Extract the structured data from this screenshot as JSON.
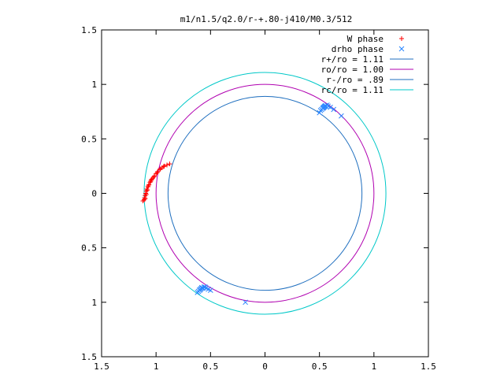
{
  "chart_data": {
    "type": "scatter",
    "title": "m1/n1.5/q2.0/r-+.80-j410/M0.3/512",
    "xlabel": "",
    "ylabel": "",
    "xlim": [
      -1.5,
      1.5
    ],
    "ylim": [
      -1.5,
      1.5
    ],
    "x_ticks": [
      -1.5,
      -1,
      -0.5,
      0,
      0.5,
      1,
      1.5
    ],
    "y_ticks": [
      -1.5,
      -1,
      -0.5,
      0,
      0.5,
      1,
      1.5
    ],
    "x_tick_labels": [
      "1.5",
      "1",
      "0.5",
      "0",
      "0.5",
      "1",
      "1.5"
    ],
    "y_tick_labels": [
      "1.5",
      "1",
      "0.5",
      "0",
      "0.5",
      "1",
      "1.5"
    ],
    "grid": false,
    "legend_position": "top-right",
    "series": [
      {
        "name": "W phase",
        "kind": "points",
        "marker": "plus",
        "color": "#ff0000",
        "points": [
          [
            -1.12,
            -0.07
          ],
          [
            -1.11,
            -0.06
          ],
          [
            -1.105,
            -0.04
          ],
          [
            -1.1,
            -0.02
          ],
          [
            -1.095,
            0.0
          ],
          [
            -1.09,
            0.02
          ],
          [
            -1.085,
            0.04
          ],
          [
            -1.075,
            0.06
          ],
          [
            -1.065,
            0.08
          ],
          [
            -1.055,
            0.1
          ],
          [
            -1.045,
            0.12
          ],
          [
            -1.03,
            0.14
          ],
          [
            -1.015,
            0.16
          ],
          [
            -1.0,
            0.18
          ],
          [
            -0.985,
            0.2
          ],
          [
            -0.965,
            0.22
          ],
          [
            -0.945,
            0.235
          ],
          [
            -0.925,
            0.25
          ],
          [
            -0.9,
            0.26
          ],
          [
            -0.875,
            0.27
          ],
          [
            -1.1,
            -0.05
          ],
          [
            -1.09,
            -0.01
          ],
          [
            -1.08,
            0.03
          ],
          [
            -1.07,
            0.07
          ],
          [
            -1.05,
            0.11
          ],
          [
            -1.04,
            0.13
          ],
          [
            -1.02,
            0.15
          ],
          [
            -0.99,
            0.19
          ],
          [
            -0.96,
            0.225
          ],
          [
            -0.93,
            0.245
          ]
        ]
      },
      {
        "name": "drho phase",
        "kind": "points",
        "marker": "cross",
        "color": "#2a86ff",
        "points": [
          [
            0.5,
            0.74
          ],
          [
            0.51,
            0.76
          ],
          [
            0.52,
            0.77
          ],
          [
            0.53,
            0.78
          ],
          [
            0.54,
            0.79
          ],
          [
            0.55,
            0.8
          ],
          [
            0.56,
            0.8
          ],
          [
            0.57,
            0.81
          ],
          [
            0.58,
            0.8
          ],
          [
            0.6,
            0.79
          ],
          [
            0.63,
            0.77
          ],
          [
            0.7,
            0.71
          ],
          [
            0.535,
            0.785
          ],
          [
            0.545,
            0.795
          ],
          [
            0.555,
            0.805
          ],
          [
            -0.62,
            -0.91
          ],
          [
            -0.61,
            -0.9
          ],
          [
            -0.6,
            -0.89
          ],
          [
            -0.59,
            -0.88
          ],
          [
            -0.58,
            -0.87
          ],
          [
            -0.57,
            -0.87
          ],
          [
            -0.56,
            -0.86
          ],
          [
            -0.55,
            -0.86
          ],
          [
            -0.54,
            -0.87
          ],
          [
            -0.52,
            -0.88
          ],
          [
            -0.5,
            -0.89
          ],
          [
            -0.6,
            -0.885
          ],
          [
            -0.59,
            -0.875
          ],
          [
            -0.58,
            -0.865
          ],
          [
            -0.18,
            -1.0
          ]
        ]
      },
      {
        "name": "r+/ro = 1.11",
        "kind": "circle",
        "radius": 1.11,
        "color": "#1f6fbf",
        "drawn": false
      },
      {
        "name": "ro/ro = 1.00",
        "kind": "circle",
        "radius": 1.0,
        "color": "#b000b0",
        "drawn": true
      },
      {
        "name": "r-/ro =  .89",
        "kind": "circle",
        "radius": 0.89,
        "color": "#1f6fbf",
        "drawn": true
      },
      {
        "name": "rc/ro = 1.11",
        "kind": "circle",
        "radius": 1.11,
        "color": "#00c8c8",
        "drawn": true
      }
    ]
  }
}
